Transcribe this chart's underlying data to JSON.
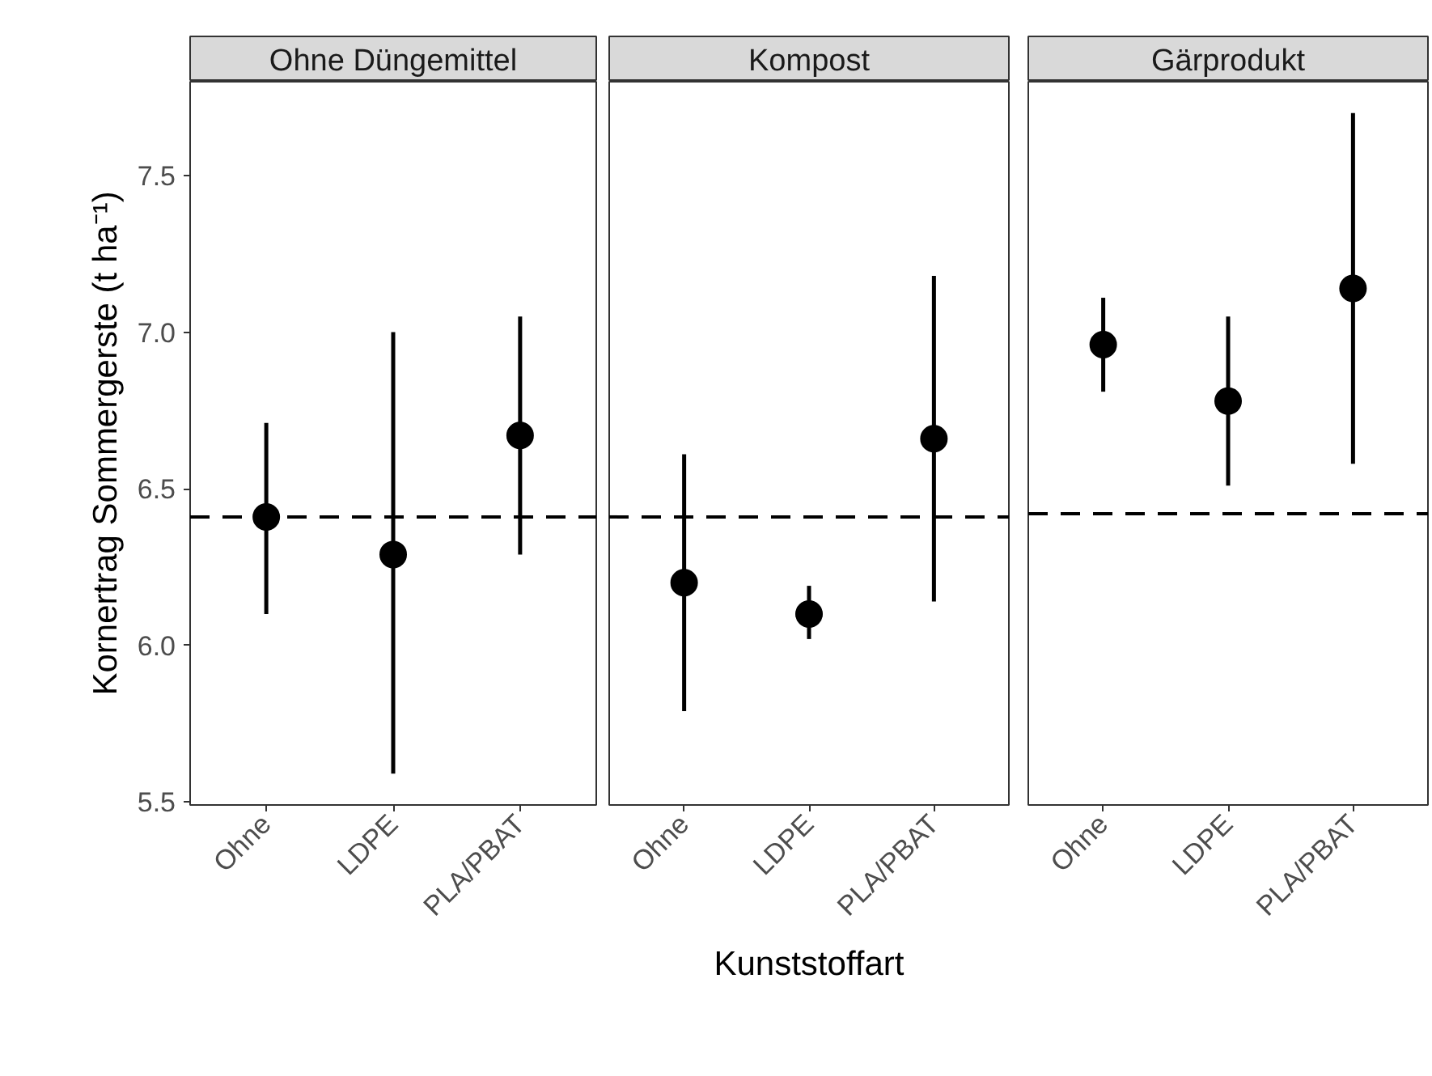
{
  "chart_data": [
    {
      "type": "scatter",
      "title": "Ohne Düngemittel",
      "ylabel": "Kornertrag Sommergerste (t ha⁻¹)",
      "categories": [
        "Ohne",
        "LDPE",
        "PLA/PBAT"
      ],
      "series": [
        {
          "color": "#000000",
          "values": [
            6.41,
            6.29,
            6.67
          ],
          "errors": [
            [
              6.1,
              6.71
            ],
            [
              5.59,
              7.0
            ],
            [
              6.29,
              7.05
            ]
          ]
        }
      ],
      "ylim": [
        5.49,
        7.8
      ],
      "yticks": [
        5.5,
        {
          "value": 6,
          "label": "6.0"
        },
        6.5,
        {
          "value": 7,
          "label": "7.0"
        },
        7.5
      ],
      "marker": "circle",
      "grid": false,
      "ref_lines": [
        {
          "axis": "y",
          "value": 6.41,
          "color": "#000000",
          "line_style": "dashed"
        }
      ]
    },
    {
      "type": "scatter",
      "title": "Kompost",
      "xlabel": "Kunststoffart",
      "categories": [
        "Ohne",
        "LDPE",
        "PLA/PBAT"
      ],
      "series": [
        {
          "color": "#000000",
          "values": [
            6.2,
            6.1,
            6.66
          ],
          "errors": [
            [
              5.79,
              6.61
            ],
            [
              6.02,
              6.19
            ],
            [
              6.14,
              7.18
            ]
          ]
        }
      ],
      "ylim": [
        5.49,
        7.8
      ],
      "yticks": [
        5.5,
        6.0,
        6.5,
        7.0,
        7.5
      ],
      "tick_labels": "x",
      "marker": "circle",
      "grid": false,
      "ref_lines": [
        {
          "axis": "y",
          "value": 6.41,
          "color": "#000000",
          "line_style": "dashed"
        }
      ]
    },
    {
      "type": "scatter",
      "title": "Gärprodukt",
      "categories": [
        "Ohne",
        "LDPE",
        "PLA/PBAT"
      ],
      "series": [
        {
          "color": "#000000",
          "values": [
            6.96,
            6.78,
            7.14
          ],
          "errors": [
            [
              6.81,
              7.11
            ],
            [
              6.51,
              7.05
            ],
            [
              6.58,
              7.7
            ]
          ]
        }
      ],
      "ylim": [
        5.49,
        7.8
      ],
      "yticks": [
        5.5,
        6.0,
        6.5,
        7.0,
        7.5
      ],
      "tick_labels": "x",
      "marker": "circle",
      "grid": false,
      "ref_lines": [
        {
          "axis": "y",
          "value": 6.42,
          "color": "#000000",
          "line_style": "dashed"
        }
      ]
    }
  ]
}
